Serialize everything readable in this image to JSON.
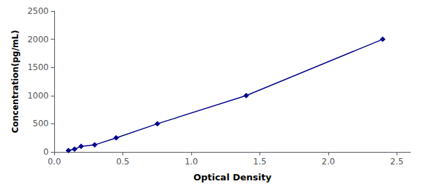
{
  "chart_data": {
    "type": "line",
    "x": [
      0.103,
      0.148,
      0.196,
      0.295,
      0.452,
      0.753,
      1.401,
      2.397
    ],
    "values": [
      25,
      50,
      100,
      125,
      250,
      500,
      1000,
      2000
    ],
    "color": "#00008B",
    "marker": "diamond",
    "line_style": "solid",
    "xlabel": "Optical Density",
    "ylabel": "Concentration(pg/mL)",
    "xlim": [
      0,
      2.6
    ],
    "ylim": [
      0,
      2500
    ],
    "xticks": [
      {
        "value": 0,
        "label": "0.0"
      },
      0.5,
      {
        "value": 1,
        "label": "1.0"
      },
      1.5,
      {
        "value": 2,
        "label": "2.0"
      },
      2.5
    ],
    "yticks": [
      0,
      500,
      1000,
      1500,
      2000,
      2500
    ],
    "grid": false
  }
}
